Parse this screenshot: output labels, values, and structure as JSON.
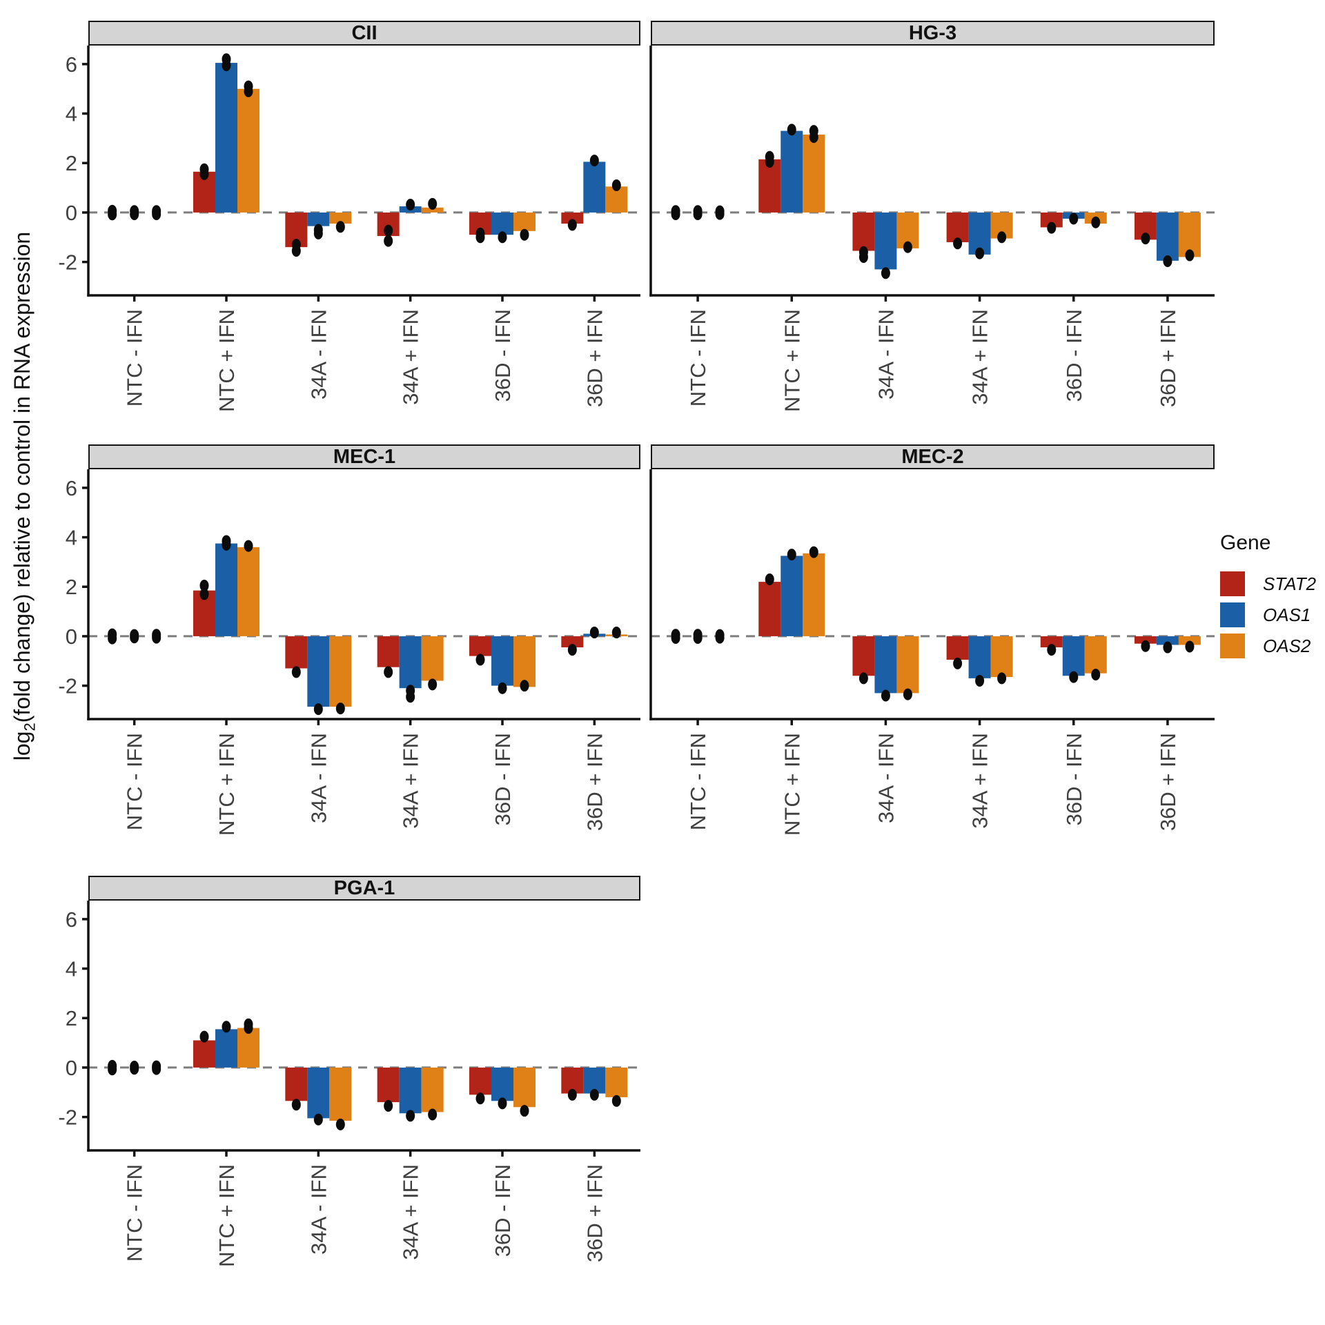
{
  "chart_data": {
    "type": "bar",
    "title": "",
    "ylabel_prefix": "log",
    "ylabel_sub": "2",
    "ylabel_rest": "(fold change) relative to control in RNA expression",
    "categories": [
      "NTC - IFN",
      "NTC + IFN",
      "34A - IFN",
      "34A + IFN",
      "36D - IFN",
      "36D + IFN"
    ],
    "series": [
      "STAT2",
      "OAS1",
      "OAS2"
    ],
    "series_colors": [
      "#B22418",
      "#1B5FA6",
      "#E08118"
    ],
    "yticks": [
      -2,
      0,
      2,
      4,
      6
    ],
    "ylim": [
      -3.35,
      6.75
    ],
    "grid": false,
    "zero_line_dashed": true,
    "legend": {
      "title": "Gene",
      "position": "right",
      "entries": [
        "STAT2",
        "OAS1",
        "OAS2"
      ]
    },
    "facets": [
      {
        "title": "CII",
        "series": [
          {
            "name": "STAT2",
            "values": [
              0,
              1.65,
              -1.4,
              -0.95,
              -0.9,
              -0.45
            ],
            "points": [
              [
                0.07,
                -0.08
              ],
              [
                1.75,
                1.55
              ],
              [
                -1.3,
                -1.55
              ],
              [
                -0.73,
                -1.15
              ],
              [
                -1.0,
                -0.85
              ],
              [
                -0.5
              ]
            ]
          },
          {
            "name": "OAS1",
            "values": [
              0,
              6.05,
              -0.55,
              0.25,
              -0.9,
              2.05
            ],
            "points": [
              [
                0.06,
                -0.07
              ],
              [
                6.2,
                5.95
              ],
              [
                -0.7,
                -0.85
              ],
              [
                0.32
              ],
              [
                -1.0
              ],
              [
                2.1
              ]
            ]
          },
          {
            "name": "OAS2",
            "values": [
              0,
              5.0,
              -0.45,
              0.2,
              -0.75,
              1.05
            ],
            "points": [
              [
                0.06,
                -0.07
              ],
              [
                5.1,
                4.9
              ],
              [
                -0.58
              ],
              [
                0.35
              ],
              [
                -0.9
              ],
              [
                1.1
              ]
            ]
          }
        ]
      },
      {
        "title": "HG-3",
        "series": [
          {
            "name": "STAT2",
            "values": [
              0,
              2.15,
              -1.55,
              -1.2,
              -0.6,
              -1.1
            ],
            "points": [
              [
                0.06,
                -0.07
              ],
              [
                2.25,
                2.05
              ],
              [
                -1.6,
                -1.8
              ],
              [
                -1.25
              ],
              [
                -0.62
              ],
              [
                -1.05
              ]
            ]
          },
          {
            "name": "OAS1",
            "values": [
              0,
              3.3,
              -2.3,
              -1.7,
              -0.25,
              -1.95
            ],
            "points": [
              [
                0.06,
                -0.07
              ],
              [
                3.35
              ],
              [
                -2.45
              ],
              [
                -1.65
              ],
              [
                -0.25
              ],
              [
                -1.97
              ]
            ]
          },
          {
            "name": "OAS2",
            "values": [
              0,
              3.15,
              -1.45,
              -1.05,
              -0.45,
              -1.8
            ],
            "points": [
              [
                0.05,
                -0.06
              ],
              [
                3.3,
                3.05
              ],
              [
                -1.4
              ],
              [
                -1.0
              ],
              [
                -0.4
              ],
              [
                -1.73
              ]
            ]
          }
        ]
      },
      {
        "title": "MEC-1",
        "series": [
          {
            "name": "STAT2",
            "values": [
              0,
              1.85,
              -1.3,
              -1.25,
              -0.8,
              -0.45
            ],
            "points": [
              [
                0.08,
                -0.09
              ],
              [
                2.05,
                1.7
              ],
              [
                -1.45
              ],
              [
                -1.45
              ],
              [
                -0.95
              ],
              [
                -0.55
              ]
            ]
          },
          {
            "name": "OAS1",
            "values": [
              0,
              3.75,
              -2.85,
              -2.1,
              -2.0,
              0.1
            ],
            "points": [
              [
                0.05,
                -0.05
              ],
              [
                3.85,
                3.7
              ],
              [
                -2.95
              ],
              [
                -2.2,
                -2.45
              ],
              [
                -2.1
              ],
              [
                0.15
              ]
            ]
          },
          {
            "name": "OAS2",
            "values": [
              0,
              3.6,
              -2.85,
              -1.8,
              -2.05,
              0.07
            ],
            "points": [
              [
                0.06,
                -0.06
              ],
              [
                3.65
              ],
              [
                -2.92
              ],
              [
                -1.95
              ],
              [
                -2.0
              ],
              [
                0.15
              ]
            ]
          }
        ]
      },
      {
        "title": "MEC-2",
        "series": [
          {
            "name": "STAT2",
            "values": [
              0,
              2.2,
              -1.6,
              -0.95,
              -0.45,
              -0.3
            ],
            "points": [
              [
                0.06,
                -0.07
              ],
              [
                2.3
              ],
              [
                -1.7
              ],
              [
                -1.1
              ],
              [
                -0.55
              ],
              [
                -0.4
              ]
            ]
          },
          {
            "name": "OAS1",
            "values": [
              0,
              3.25,
              -2.3,
              -1.7,
              -1.6,
              -0.35
            ],
            "points": [
              [
                0.06,
                -0.07
              ],
              [
                3.3
              ],
              [
                -2.4
              ],
              [
                -1.8
              ],
              [
                -1.65
              ],
              [
                -0.45
              ]
            ]
          },
          {
            "name": "OAS2",
            "values": [
              0,
              3.35,
              -2.3,
              -1.65,
              -1.5,
              -0.35
            ],
            "points": [
              [
                0.05,
                -0.06
              ],
              [
                3.4
              ],
              [
                -2.35
              ],
              [
                -1.7
              ],
              [
                -1.55
              ],
              [
                -0.42
              ]
            ]
          }
        ]
      },
      {
        "title": "PGA-1",
        "series": [
          {
            "name": "STAT2",
            "values": [
              0,
              1.1,
              -1.35,
              -1.4,
              -1.1,
              -1.05
            ],
            "points": [
              [
                0.07,
                -0.08
              ],
              [
                1.25
              ],
              [
                -1.5
              ],
              [
                -1.55
              ],
              [
                -1.25
              ],
              [
                -1.1
              ]
            ]
          },
          {
            "name": "OAS1",
            "values": [
              0,
              1.55,
              -2.05,
              -1.85,
              -1.35,
              -1.05
            ],
            "points": [
              [
                0.04,
                -0.05
              ],
              [
                1.65
              ],
              [
                -2.1
              ],
              [
                -1.95
              ],
              [
                -1.45
              ],
              [
                -1.1
              ]
            ]
          },
          {
            "name": "OAS2",
            "values": [
              0,
              1.6,
              -2.15,
              -1.8,
              -1.6,
              -1.2
            ],
            "points": [
              [
                0.05,
                -0.06
              ],
              [
                1.75,
                1.6
              ],
              [
                -2.3
              ],
              [
                -1.9
              ],
              [
                -1.75
              ],
              [
                -1.35
              ]
            ]
          }
        ]
      }
    ]
  }
}
